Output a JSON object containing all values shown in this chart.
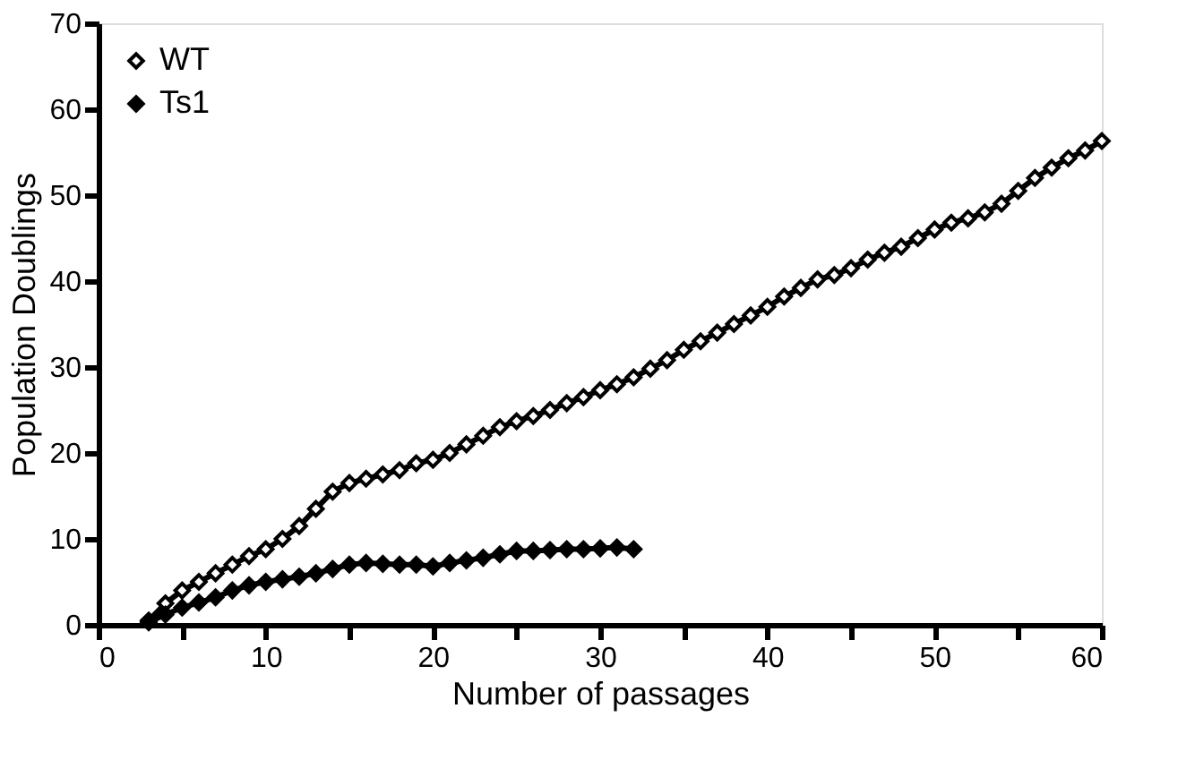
{
  "chart_data": {
    "type": "line",
    "xlabel": "Number of passages",
    "ylabel": "Population Doublings",
    "xlim": [
      0,
      60
    ],
    "ylim": [
      0,
      70
    ],
    "xticks": [
      0,
      {
        "value": 5,
        "label": null
      },
      10,
      {
        "value": 15,
        "label": null
      },
      20,
      {
        "value": 25,
        "label": null
      },
      30,
      {
        "value": 35,
        "label": null
      },
      40,
      {
        "value": 45,
        "label": null
      },
      50,
      {
        "value": 55,
        "label": null
      },
      60
    ],
    "yticks": [
      0,
      10,
      20,
      30,
      40,
      50,
      60,
      70
    ],
    "grid": false,
    "legend": "top left",
    "marker": "diamond",
    "line_style": "solid",
    "series": [
      {
        "name": "WT",
        "color": "#000000",
        "colors": [
          "#ffffff",
          "#ffffff",
          "#ffffff",
          "#ffffff",
          "#ffffff",
          "#ffffff",
          "#ffffff",
          "#ffffff",
          "#ffffff",
          "#ffffff",
          "#ffffff",
          "#ffffff",
          "#ffffff",
          "#ffffff",
          "#ffffff",
          "#ffffff",
          "#ffffff",
          "#ffffff",
          "#ffffff",
          "#ffffff",
          "#ffffff",
          "#ffffff",
          "#ffffff",
          "#ffffff",
          "#ffffff",
          "#ffffff",
          "#ffffff",
          "#ffffff",
          "#ffffff",
          "#ffffff",
          "#ffffff",
          "#ffffff",
          "#ffffff",
          "#ffffff",
          "#ffffff",
          "#ffffff",
          "#ffffff",
          "#ffffff",
          "#ffffff",
          "#ffffff",
          "#ffffff",
          "#ffffff",
          "#ffffff",
          "#ffffff",
          "#ffffff",
          "#ffffff",
          "#ffffff",
          "#ffffff",
          "#ffffff",
          "#ffffff",
          "#ffffff",
          "#ffffff",
          "#ffffff",
          "#ffffff",
          "#ffffff",
          "#ffffff",
          "#ffffff",
          "#ffffff"
        ],
        "x": [
          3,
          4,
          5,
          6,
          7,
          8,
          9,
          10,
          11,
          12,
          13,
          14,
          15,
          16,
          17,
          18,
          19,
          20,
          21,
          22,
          23,
          24,
          25,
          26,
          27,
          28,
          29,
          30,
          31,
          32,
          33,
          34,
          35,
          36,
          37,
          38,
          39,
          40,
          41,
          42,
          43,
          44,
          45,
          46,
          47,
          48,
          49,
          50,
          51,
          52,
          53,
          54,
          55,
          56,
          57,
          58,
          59,
          60
        ],
        "values": [
          0.5,
          2.5,
          4,
          5,
          6,
          7,
          8,
          8.8,
          10,
          11.5,
          13.5,
          15.5,
          16.5,
          17,
          17.5,
          18,
          18.8,
          19.2,
          20,
          21,
          22,
          23,
          23.7,
          24.3,
          25,
          25.8,
          26.5,
          27.3,
          28,
          28.8,
          29.8,
          30.8,
          32,
          33,
          34,
          35,
          36,
          37,
          38.2,
          39.2,
          40.2,
          40.7,
          41.5,
          42.5,
          43.3,
          44,
          45,
          46,
          46.8,
          47.3,
          48,
          49,
          50.5,
          52,
          53.2,
          54.3,
          55.2,
          56.3
        ]
      },
      {
        "name": "Ts1",
        "color": "#000000",
        "x": [
          3,
          4,
          5,
          6,
          7,
          8,
          9,
          10,
          11,
          12,
          13,
          14,
          15,
          16,
          17,
          18,
          19,
          20,
          21,
          22,
          23,
          24,
          25,
          26,
          27,
          28,
          29,
          30,
          31,
          32
        ],
        "values": [
          0.3,
          1.2,
          2,
          2.6,
          3.2,
          4,
          4.6,
          5,
          5.3,
          5.6,
          6,
          6.5,
          7,
          7.2,
          7.1,
          7,
          7,
          6.8,
          7.2,
          7.5,
          7.8,
          8.2,
          8.6,
          8.6,
          8.7,
          8.8,
          8.8,
          8.9,
          9,
          8.8
        ]
      }
    ]
  }
}
